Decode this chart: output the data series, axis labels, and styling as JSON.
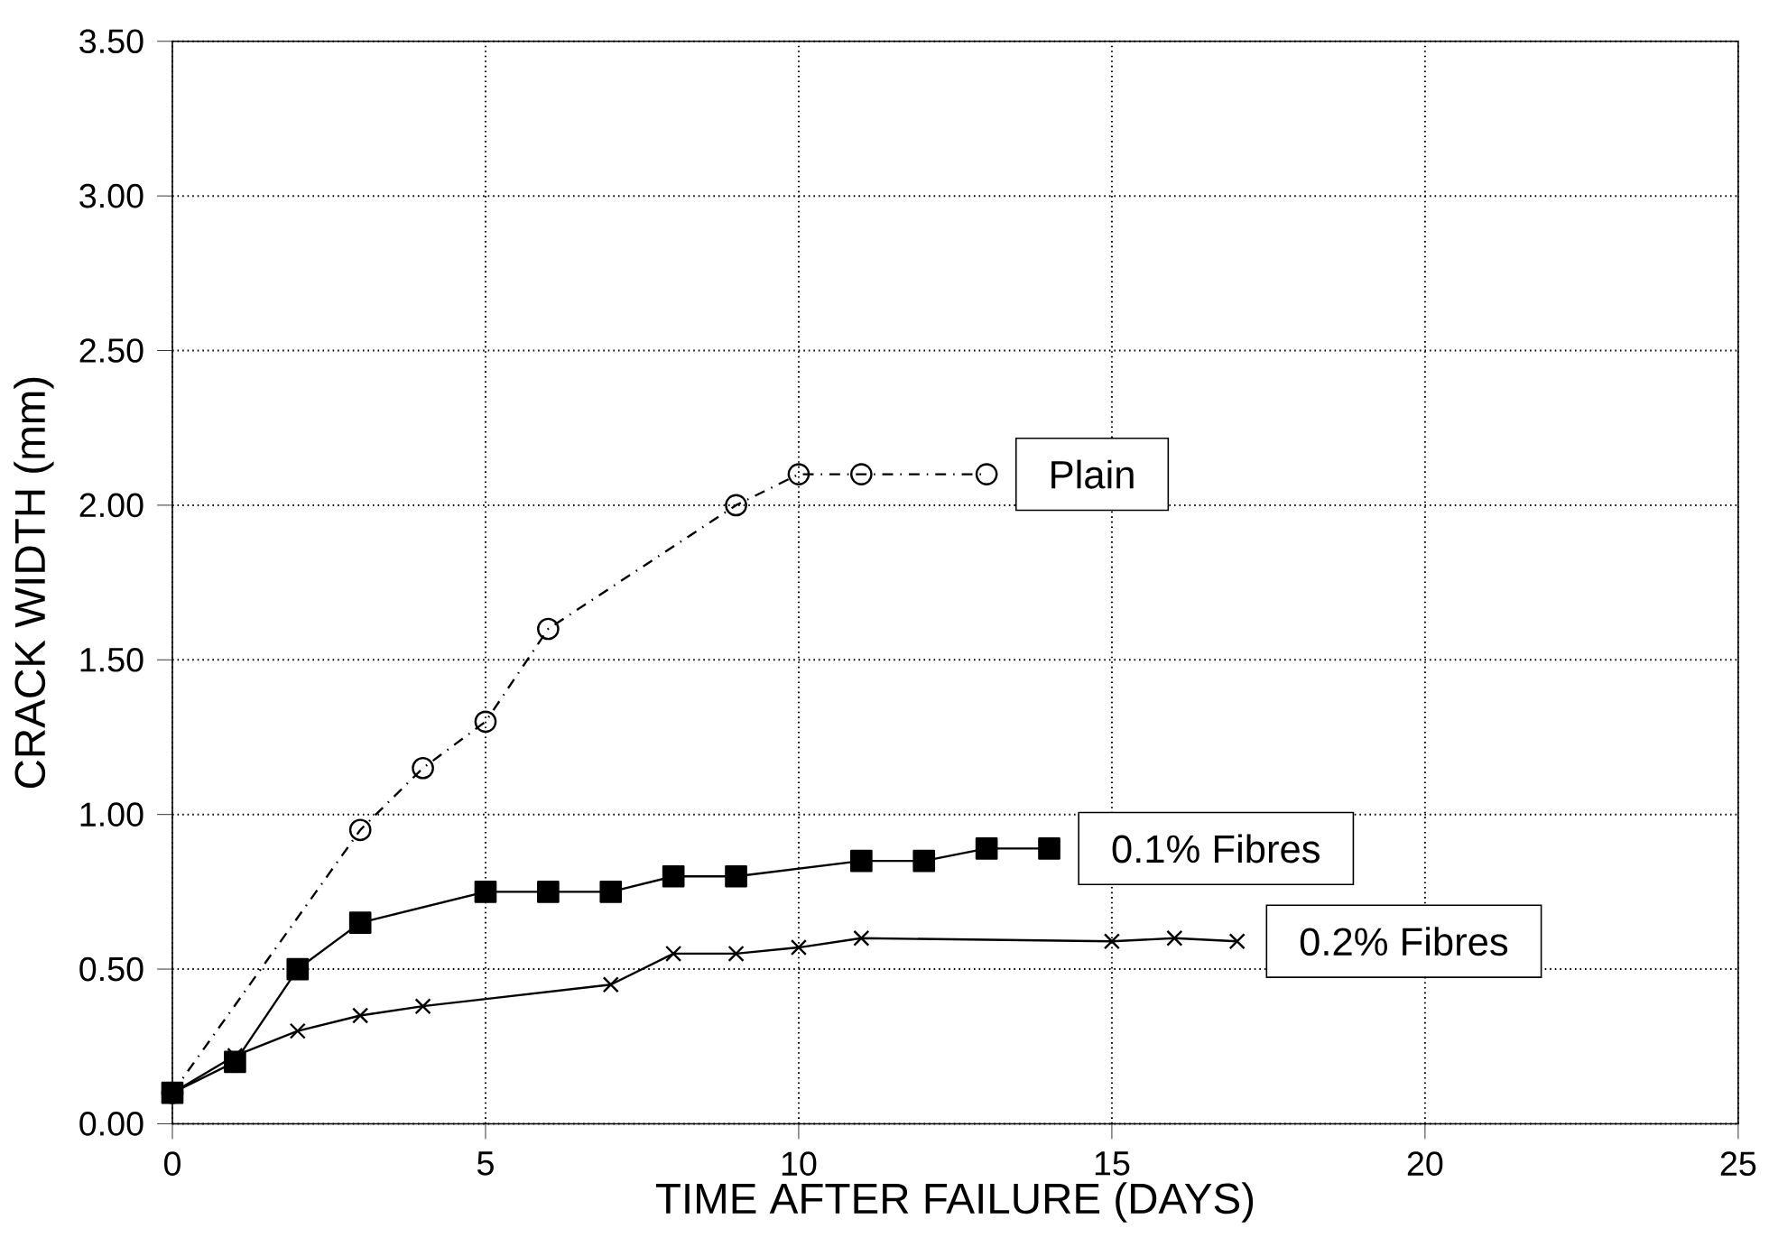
{
  "chart_data": {
    "type": "line",
    "xlabel": "TIME AFTER FAILURE (DAYS)",
    "ylabel": "CRACK WIDTH (mm)",
    "xlim": [
      0,
      25
    ],
    "xticks": [
      0,
      5,
      10,
      15,
      20,
      25
    ],
    "ylim": [
      0,
      3.5
    ],
    "yticks": [
      {
        "value": 0,
        "label": "0.00"
      },
      {
        "value": 0.5,
        "label": "0.50"
      },
      {
        "value": 1,
        "label": "1.00"
      },
      {
        "value": 1.5,
        "label": "1.50"
      },
      {
        "value": 2,
        "label": "2.00"
      },
      {
        "value": 2.5,
        "label": "2.50"
      },
      {
        "value": 3,
        "label": "3.00"
      },
      {
        "value": 3.5,
        "label": "3.50"
      }
    ],
    "grid": true,
    "legend": false,
    "series": [
      {
        "name": "Plain",
        "color": "#000000",
        "marker": "circle",
        "line_style": "dashed",
        "x": [
          0,
          3,
          4,
          5,
          6,
          9,
          10,
          11,
          13
        ],
        "values": [
          0.1,
          0.95,
          1.15,
          1.3,
          1.6,
          2.0,
          2.1,
          2.1,
          2.1
        ]
      },
      {
        "name": "0.1% Fibres",
        "color": "#000000",
        "marker": "square",
        "line_style": "solid",
        "x": [
          0,
          1,
          2,
          3,
          5,
          6,
          7,
          8,
          9,
          11,
          12,
          13,
          14
        ],
        "values": [
          0.1,
          0.2,
          0.5,
          0.65,
          0.75,
          0.75,
          0.75,
          0.8,
          0.8,
          0.85,
          0.85,
          0.89,
          0.89
        ]
      },
      {
        "name": "0.2% Fibres",
        "color": "#000000",
        "marker": "cross",
        "line_style": "solid",
        "x": [
          0,
          1,
          2,
          3,
          4,
          7,
          8,
          9,
          10,
          11,
          15,
          16,
          17
        ],
        "values": [
          0.1,
          0.22,
          0.3,
          0.35,
          0.38,
          0.45,
          0.55,
          0.55,
          0.57,
          0.6,
          0.59,
          0.6,
          0.59
        ]
      }
    ]
  }
}
